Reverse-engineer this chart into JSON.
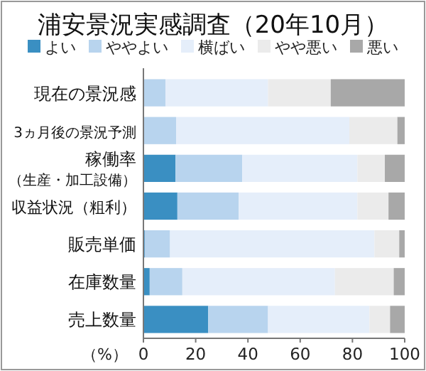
{
  "chart_data": {
    "type": "bar",
    "orientation": "horizontal",
    "stacked": true,
    "title": "浦安景況実感調査（20年10月）",
    "xlabel": "（%）",
    "categories": [
      "現在の景況感",
      "3ヵ月後の景況予測",
      "稼働率（生産・加工設備）",
      "収益状況（粗利）",
      "販売単価",
      "在庫数量",
      "売上数量"
    ],
    "series": [
      {
        "name": "よい",
        "color": "#3a8fc2",
        "values": [
          0,
          0,
          12.3,
          13,
          0.5,
          2.4,
          24.8
        ]
      },
      {
        "name": "ややよい",
        "color": "#b8d4ee",
        "values": [
          8.5,
          12.5,
          25.5,
          23.5,
          9.7,
          12.5,
          22.9
        ]
      },
      {
        "name": "横ばい",
        "color": "#e5eefa",
        "values": [
          39.2,
          66.3,
          44.1,
          45.4,
          78.2,
          58.4,
          38.8
        ]
      },
      {
        "name": "やや悪い",
        "color": "#ebebeb",
        "values": [
          24,
          18.4,
          10.5,
          11.9,
          9.5,
          22.5,
          7.9
        ]
      },
      {
        "name": "悪い",
        "color": "#a8a8a8",
        "values": [
          28.3,
          2.8,
          7.6,
          6.2,
          2.1,
          4.2,
          5.6
        ]
      }
    ],
    "xlim": [
      0,
      100
    ],
    "xticks": [
      0,
      20,
      40,
      60,
      80,
      100
    ],
    "legend": "top",
    "grid": false
  }
}
